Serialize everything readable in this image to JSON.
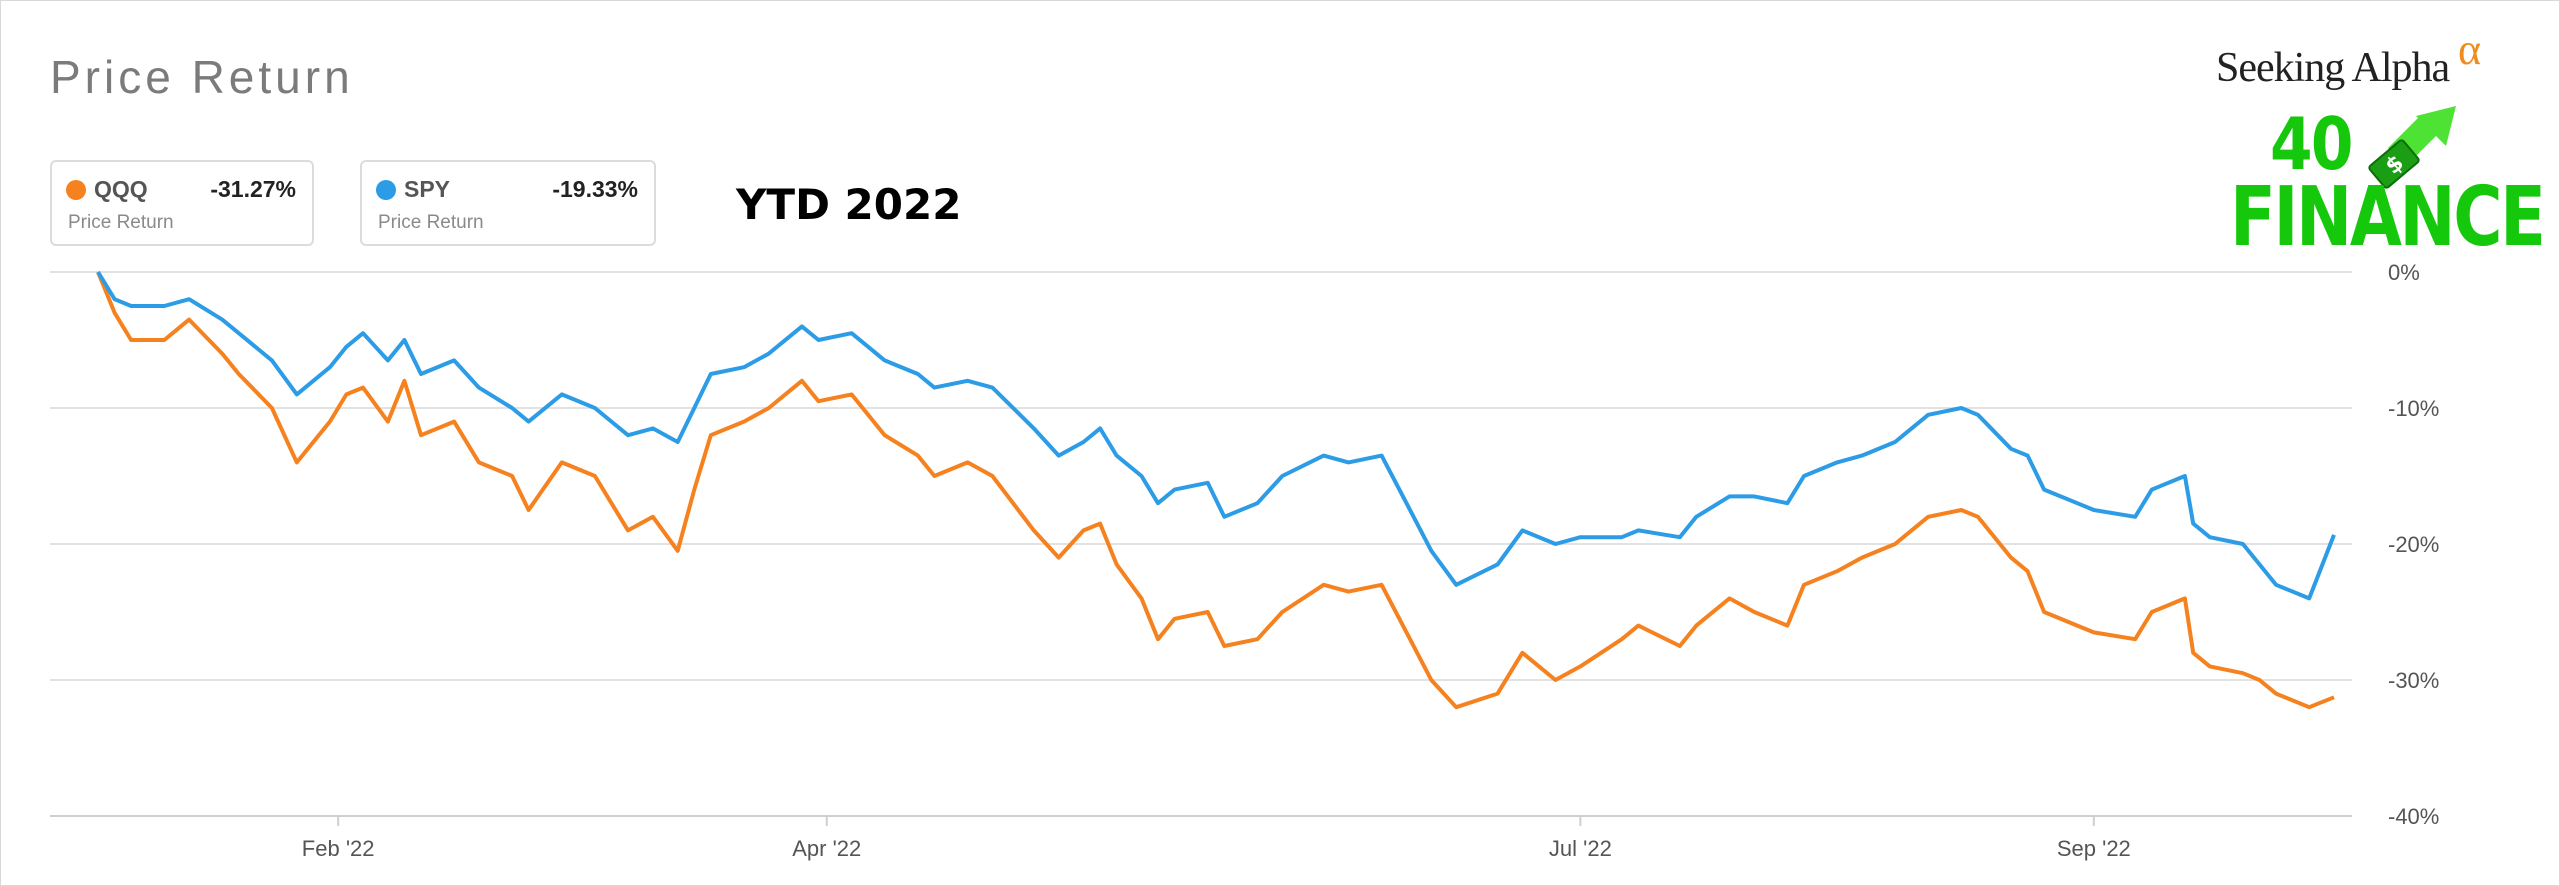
{
  "title": "Price Return",
  "annotation": "YTD 2022",
  "logo": {
    "brand": "Seeking Alpha",
    "brand_mark": "α",
    "line1": "40",
    "line2": "FINANCE",
    "dollar_sign": "$"
  },
  "legend": [
    {
      "symbol": "QQQ",
      "value": "-31.27%",
      "sub": "Price Return",
      "color": "#f5821f"
    },
    {
      "symbol": "SPY",
      "value": "-19.33%",
      "sub": "Price Return",
      "color": "#2d9ce6"
    }
  ],
  "chart_data": {
    "type": "line",
    "title": "Price Return",
    "xlabel": "",
    "ylabel": "",
    "y_unit": "%",
    "ylim": [
      -40,
      0
    ],
    "yticks": [
      0,
      -10,
      -20,
      -30,
      -40
    ],
    "ytick_labels": [
      "0%",
      "-10%",
      "-20%",
      "-30%",
      "-40%"
    ],
    "xlim": [
      "2022-01-03",
      "2022-09-30"
    ],
    "xticks": [
      "2022-02-01",
      "2022-04-01",
      "2022-07-01",
      "2022-09-01"
    ],
    "xtick_labels": [
      "Feb '22",
      "Apr '22",
      "Jul '22",
      "Sep '22"
    ],
    "grid": true,
    "legend_position": "top-left",
    "series": [
      {
        "name": "QQQ",
        "color": "#f5821f",
        "points": [
          [
            "2022-01-03",
            0
          ],
          [
            "2022-01-05",
            -3
          ],
          [
            "2022-01-07",
            -5
          ],
          [
            "2022-01-11",
            -5
          ],
          [
            "2022-01-14",
            -3.5
          ],
          [
            "2022-01-18",
            -6
          ],
          [
            "2022-01-20",
            -7.5
          ],
          [
            "2022-01-24",
            -10
          ],
          [
            "2022-01-27",
            -14
          ],
          [
            "2022-01-31",
            -11
          ],
          [
            "2022-02-02",
            -9
          ],
          [
            "2022-02-04",
            -8.5
          ],
          [
            "2022-02-07",
            -11
          ],
          [
            "2022-02-09",
            -8
          ],
          [
            "2022-02-11",
            -12
          ],
          [
            "2022-02-15",
            -11
          ],
          [
            "2022-02-18",
            -14
          ],
          [
            "2022-02-22",
            -15
          ],
          [
            "2022-02-24",
            -17.5
          ],
          [
            "2022-02-28",
            -14
          ],
          [
            "2022-03-04",
            -15
          ],
          [
            "2022-03-08",
            -19
          ],
          [
            "2022-03-11",
            -18
          ],
          [
            "2022-03-14",
            -20.5
          ],
          [
            "2022-03-16",
            -16
          ],
          [
            "2022-03-18",
            -12
          ],
          [
            "2022-03-22",
            -11
          ],
          [
            "2022-03-25",
            -10
          ],
          [
            "2022-03-29",
            -8
          ],
          [
            "2022-03-31",
            -9.5
          ],
          [
            "2022-04-04",
            -9
          ],
          [
            "2022-04-08",
            -12
          ],
          [
            "2022-04-12",
            -13.5
          ],
          [
            "2022-04-14",
            -15
          ],
          [
            "2022-04-18",
            -14
          ],
          [
            "2022-04-21",
            -15
          ],
          [
            "2022-04-26",
            -19
          ],
          [
            "2022-04-29",
            -21
          ],
          [
            "2022-05-02",
            -19
          ],
          [
            "2022-05-04",
            -18.5
          ],
          [
            "2022-05-06",
            -21.5
          ],
          [
            "2022-05-09",
            -24
          ],
          [
            "2022-05-11",
            -27
          ],
          [
            "2022-05-13",
            -25.5
          ],
          [
            "2022-05-17",
            -25
          ],
          [
            "2022-05-19",
            -27.5
          ],
          [
            "2022-05-23",
            -27
          ],
          [
            "2022-05-26",
            -25
          ],
          [
            "2022-05-31",
            -23
          ],
          [
            "2022-06-03",
            -23.5
          ],
          [
            "2022-06-07",
            -23
          ],
          [
            "2022-06-10",
            -26.5
          ],
          [
            "2022-06-13",
            -30
          ],
          [
            "2022-06-16",
            -32
          ],
          [
            "2022-06-21",
            -31
          ],
          [
            "2022-06-24",
            -28
          ],
          [
            "2022-06-28",
            -30
          ],
          [
            "2022-07-01",
            -29
          ],
          [
            "2022-07-06",
            -27
          ],
          [
            "2022-07-08",
            -26
          ],
          [
            "2022-07-13",
            -27.5
          ],
          [
            "2022-07-15",
            -26
          ],
          [
            "2022-07-19",
            -24
          ],
          [
            "2022-07-22",
            -25
          ],
          [
            "2022-07-26",
            -26
          ],
          [
            "2022-07-28",
            -23
          ],
          [
            "2022-08-01",
            -22
          ],
          [
            "2022-08-04",
            -21
          ],
          [
            "2022-08-08",
            -20
          ],
          [
            "2022-08-10",
            -19
          ],
          [
            "2022-08-12",
            -18
          ],
          [
            "2022-08-16",
            -17.5
          ],
          [
            "2022-08-18",
            -18
          ],
          [
            "2022-08-22",
            -21
          ],
          [
            "2022-08-24",
            -22
          ],
          [
            "2022-08-26",
            -25
          ],
          [
            "2022-08-30",
            -26
          ],
          [
            "2022-09-01",
            -26.5
          ],
          [
            "2022-09-06",
            -27
          ],
          [
            "2022-09-08",
            -25
          ],
          [
            "2022-09-12",
            -24
          ],
          [
            "2022-09-13",
            -28
          ],
          [
            "2022-09-15",
            -29
          ],
          [
            "2022-09-19",
            -29.5
          ],
          [
            "2022-09-21",
            -30
          ],
          [
            "2022-09-23",
            -31
          ],
          [
            "2022-09-27",
            -32
          ],
          [
            "2022-09-30",
            -31.27
          ]
        ]
      },
      {
        "name": "SPY",
        "color": "#2d9ce6",
        "points": [
          [
            "2022-01-03",
            0
          ],
          [
            "2022-01-05",
            -2
          ],
          [
            "2022-01-07",
            -2.5
          ],
          [
            "2022-01-11",
            -2.5
          ],
          [
            "2022-01-14",
            -2
          ],
          [
            "2022-01-18",
            -3.5
          ],
          [
            "2022-01-20",
            -4.5
          ],
          [
            "2022-01-24",
            -6.5
          ],
          [
            "2022-01-27",
            -9
          ],
          [
            "2022-01-31",
            -7
          ],
          [
            "2022-02-02",
            -5.5
          ],
          [
            "2022-02-04",
            -4.5
          ],
          [
            "2022-02-07",
            -6.5
          ],
          [
            "2022-02-09",
            -5
          ],
          [
            "2022-02-11",
            -7.5
          ],
          [
            "2022-02-15",
            -6.5
          ],
          [
            "2022-02-18",
            -8.5
          ],
          [
            "2022-02-22",
            -10
          ],
          [
            "2022-02-24",
            -11
          ],
          [
            "2022-02-28",
            -9
          ],
          [
            "2022-03-04",
            -10
          ],
          [
            "2022-03-08",
            -12
          ],
          [
            "2022-03-11",
            -11.5
          ],
          [
            "2022-03-14",
            -12.5
          ],
          [
            "2022-03-16",
            -10
          ],
          [
            "2022-03-18",
            -7.5
          ],
          [
            "2022-03-22",
            -7
          ],
          [
            "2022-03-25",
            -6
          ],
          [
            "2022-03-29",
            -4
          ],
          [
            "2022-03-31",
            -5
          ],
          [
            "2022-04-04",
            -4.5
          ],
          [
            "2022-04-08",
            -6.5
          ],
          [
            "2022-04-12",
            -7.5
          ],
          [
            "2022-04-14",
            -8.5
          ],
          [
            "2022-04-18",
            -8
          ],
          [
            "2022-04-21",
            -8.5
          ],
          [
            "2022-04-26",
            -11.5
          ],
          [
            "2022-04-29",
            -13.5
          ],
          [
            "2022-05-02",
            -12.5
          ],
          [
            "2022-05-04",
            -11.5
          ],
          [
            "2022-05-06",
            -13.5
          ],
          [
            "2022-05-09",
            -15
          ],
          [
            "2022-05-11",
            -17
          ],
          [
            "2022-05-13",
            -16
          ],
          [
            "2022-05-17",
            -15.5
          ],
          [
            "2022-05-19",
            -18
          ],
          [
            "2022-05-23",
            -17
          ],
          [
            "2022-05-26",
            -15
          ],
          [
            "2022-05-31",
            -13.5
          ],
          [
            "2022-06-03",
            -14
          ],
          [
            "2022-06-07",
            -13.5
          ],
          [
            "2022-06-10",
            -17
          ],
          [
            "2022-06-13",
            -20.5
          ],
          [
            "2022-06-16",
            -23
          ],
          [
            "2022-06-21",
            -21.5
          ],
          [
            "2022-06-24",
            -19
          ],
          [
            "2022-06-28",
            -20
          ],
          [
            "2022-07-01",
            -19.5
          ],
          [
            "2022-07-06",
            -19.5
          ],
          [
            "2022-07-08",
            -19
          ],
          [
            "2022-07-13",
            -19.5
          ],
          [
            "2022-07-15",
            -18
          ],
          [
            "2022-07-19",
            -16.5
          ],
          [
            "2022-07-22",
            -16.5
          ],
          [
            "2022-07-26",
            -17
          ],
          [
            "2022-07-28",
            -15
          ],
          [
            "2022-08-01",
            -14
          ],
          [
            "2022-08-04",
            -13.5
          ],
          [
            "2022-08-08",
            -12.5
          ],
          [
            "2022-08-10",
            -11.5
          ],
          [
            "2022-08-12",
            -10.5
          ],
          [
            "2022-08-16",
            -10
          ],
          [
            "2022-08-18",
            -10.5
          ],
          [
            "2022-08-22",
            -13
          ],
          [
            "2022-08-24",
            -13.5
          ],
          [
            "2022-08-26",
            -16
          ],
          [
            "2022-08-30",
            -17
          ],
          [
            "2022-09-01",
            -17.5
          ],
          [
            "2022-09-06",
            -18
          ],
          [
            "2022-09-08",
            -16
          ],
          [
            "2022-09-12",
            -15
          ],
          [
            "2022-09-13",
            -18.5
          ],
          [
            "2022-09-15",
            -19.5
          ],
          [
            "2022-09-19",
            -20
          ],
          [
            "2022-09-21",
            -21.5
          ],
          [
            "2022-09-23",
            -23
          ],
          [
            "2022-09-27",
            -24
          ],
          [
            "2022-09-30",
            -19.33
          ]
        ]
      }
    ]
  }
}
